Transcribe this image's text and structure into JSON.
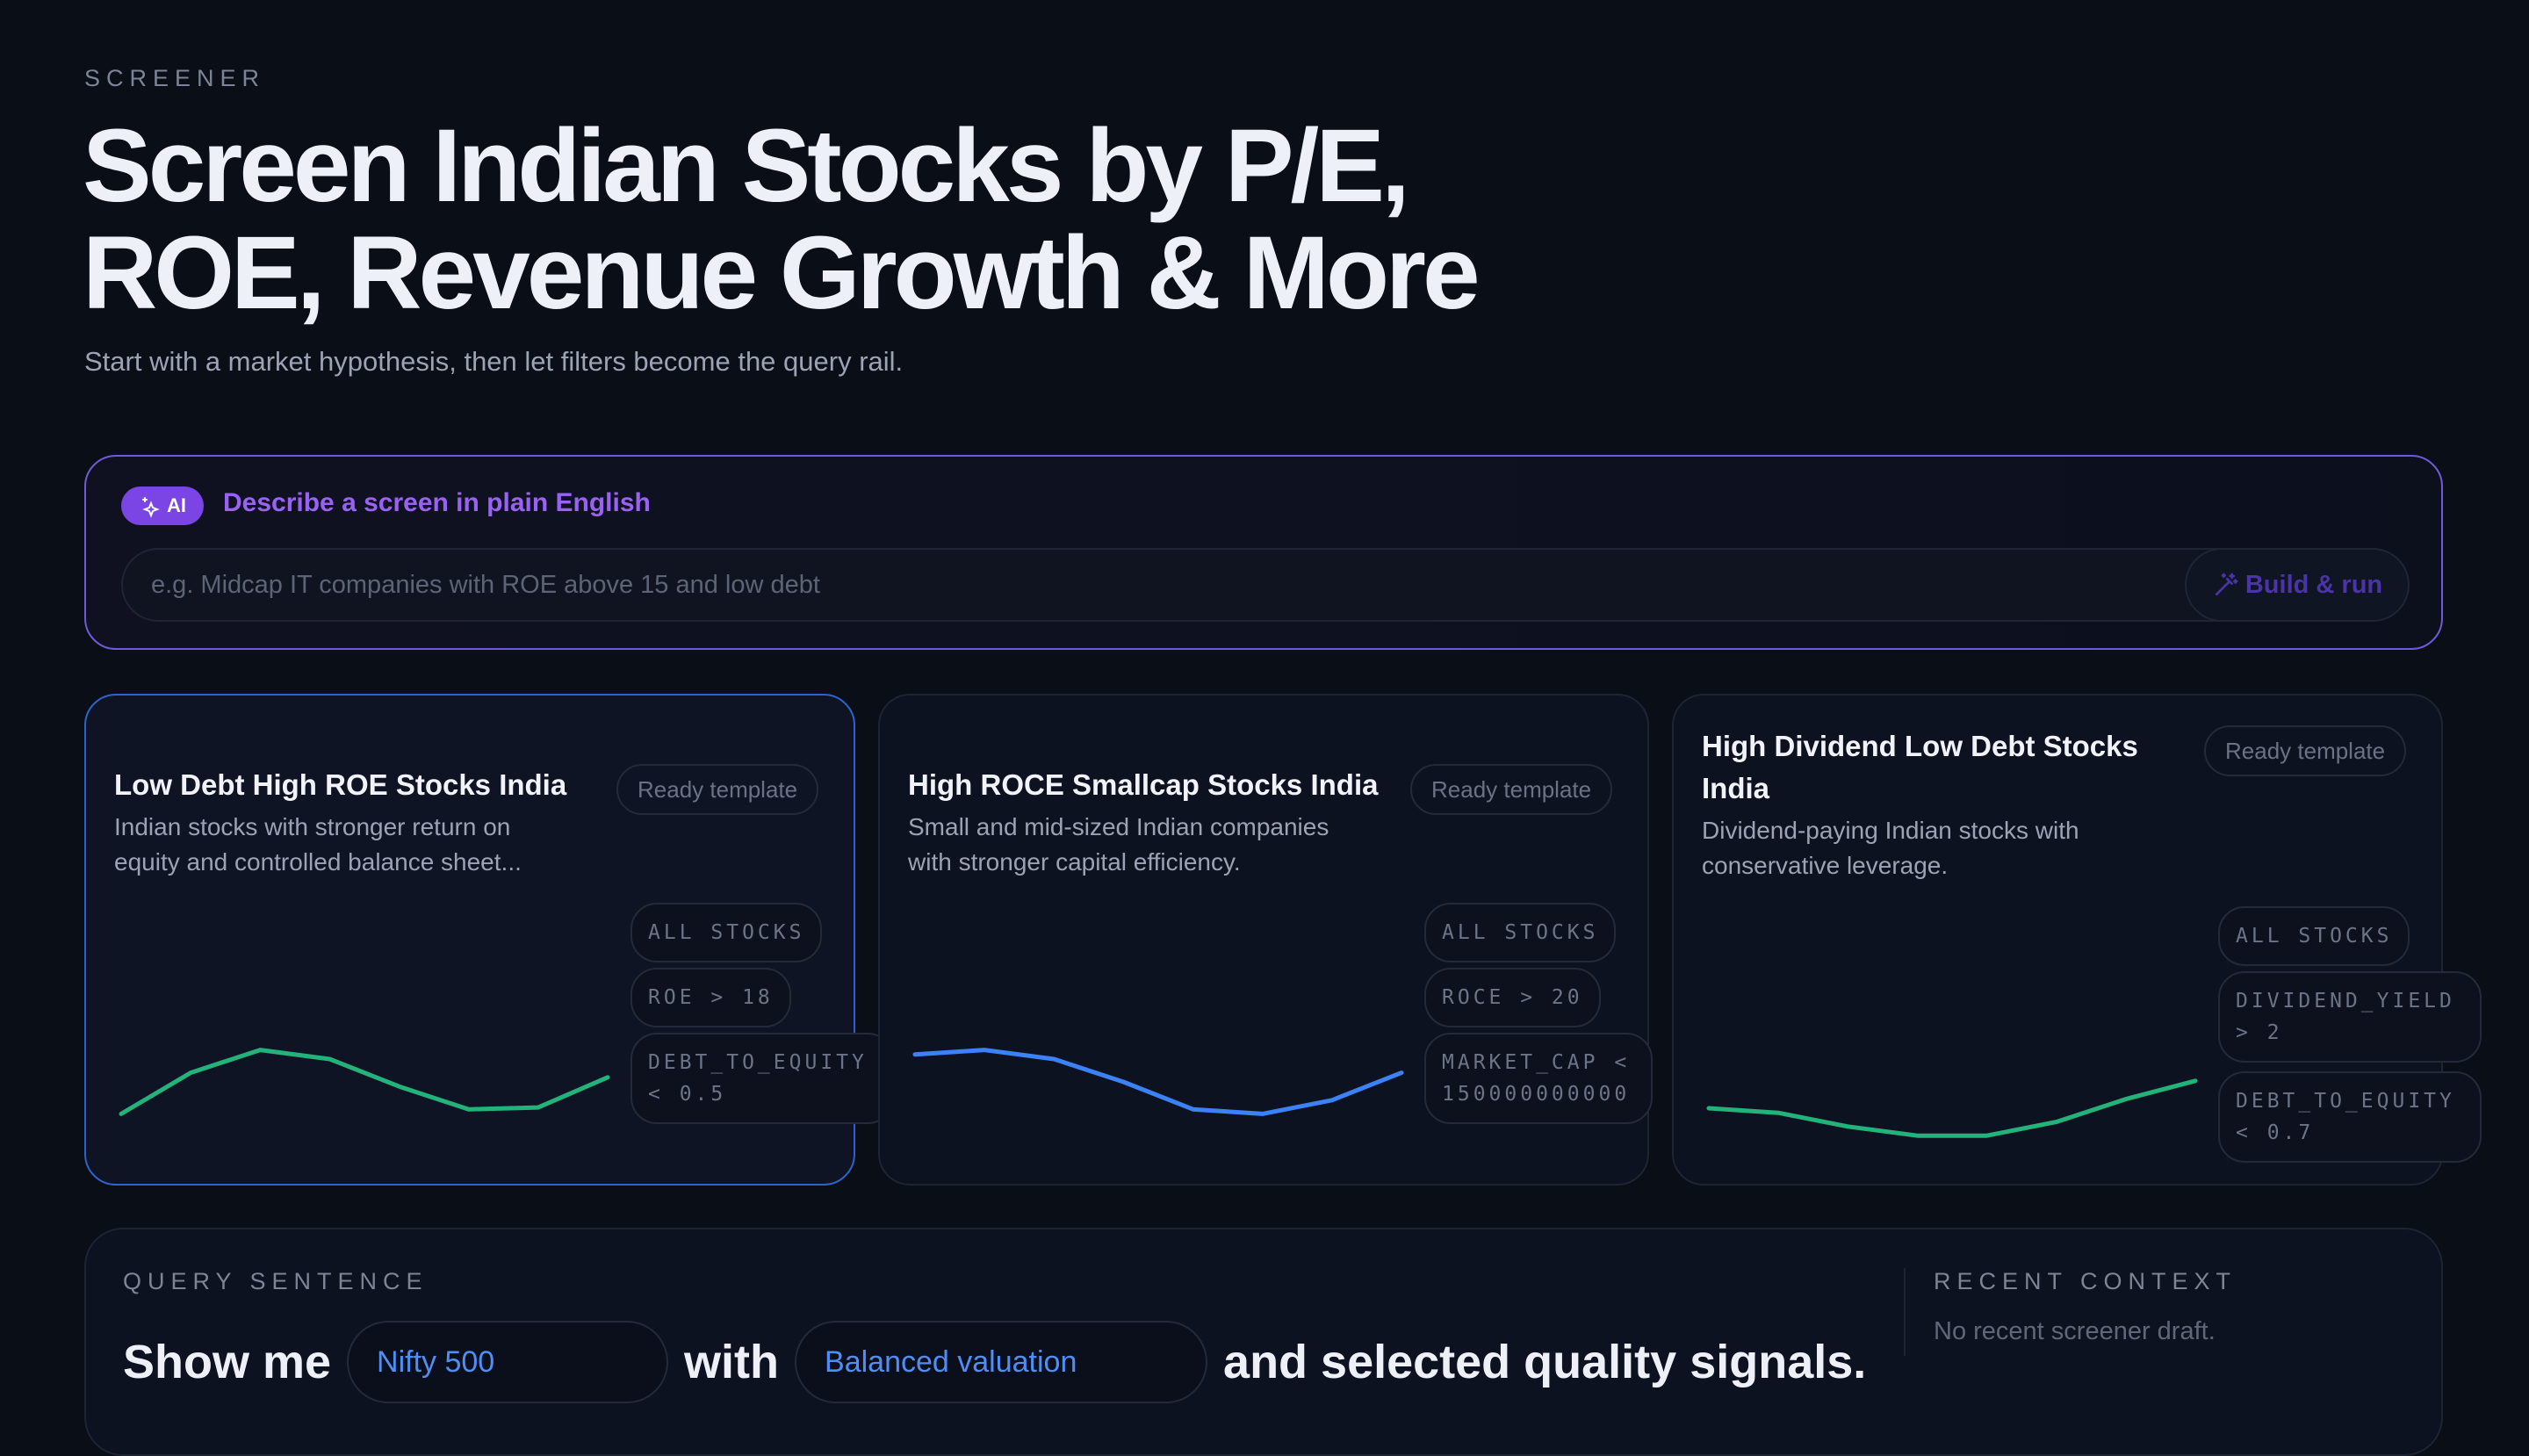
{
  "header": {
    "eyebrow": "SCREENER",
    "title_line1": "Screen Indian Stocks by P/E,",
    "title_line2": "ROE, Revenue Growth & More",
    "subtitle": "Start with a market hypothesis, then let filters become the query rail."
  },
  "ai_box": {
    "badge": "AI",
    "label": "Describe a screen in plain English",
    "input_placeholder": "e.g. Midcap IT companies with ROE above 15 and low debt",
    "input_value": "",
    "button_label": "Build & run"
  },
  "templates": [
    {
      "title": "Low Debt High ROE Stocks India",
      "description": "Indian stocks with stronger return on equity and controlled balance sheet...",
      "badge": "Ready template",
      "chips": [
        "ALL STOCKS",
        "ROE > 18",
        "DEBT_TO_EQUITY\n< 0.5"
      ],
      "sparkline_color": "#22b27a",
      "sparkline": [
        0.15,
        0.6,
        0.85,
        0.75,
        0.45,
        0.2,
        0.22,
        0.55
      ]
    },
    {
      "title": "High ROCE Smallcap Stocks India",
      "description": "Small and mid-sized Indian companies with stronger capital efficiency.",
      "badge": "Ready template",
      "chips": [
        "ALL STOCKS",
        "ROCE > 20",
        "MARKET_CAP <\n150000000000"
      ],
      "sparkline_color": "#3b82f6",
      "sparkline": [
        0.8,
        0.85,
        0.75,
        0.5,
        0.2,
        0.15,
        0.3,
        0.6
      ]
    },
    {
      "title": "High Dividend Low Debt Stocks India",
      "description": "Dividend-paying Indian stocks with conservative leverage.",
      "badge": "Ready template",
      "chips": [
        "ALL STOCKS",
        "DIVIDEND_YIELD\n> 2",
        "DEBT_TO_EQUITY\n< 0.7"
      ],
      "sparkline_color": "#22b27a",
      "sparkline": [
        0.5,
        0.45,
        0.3,
        0.2,
        0.2,
        0.35,
        0.6,
        0.8
      ]
    }
  ],
  "query": {
    "eyebrow": "QUERY SENTENCE",
    "prefix": "Show me",
    "universe": "Nifty 500",
    "connector": "with",
    "valuation": "Balanced valuation",
    "suffix": "and selected quality signals."
  },
  "recent": {
    "eyebrow": "RECENT CONTEXT",
    "text": "No recent screener draft."
  }
}
